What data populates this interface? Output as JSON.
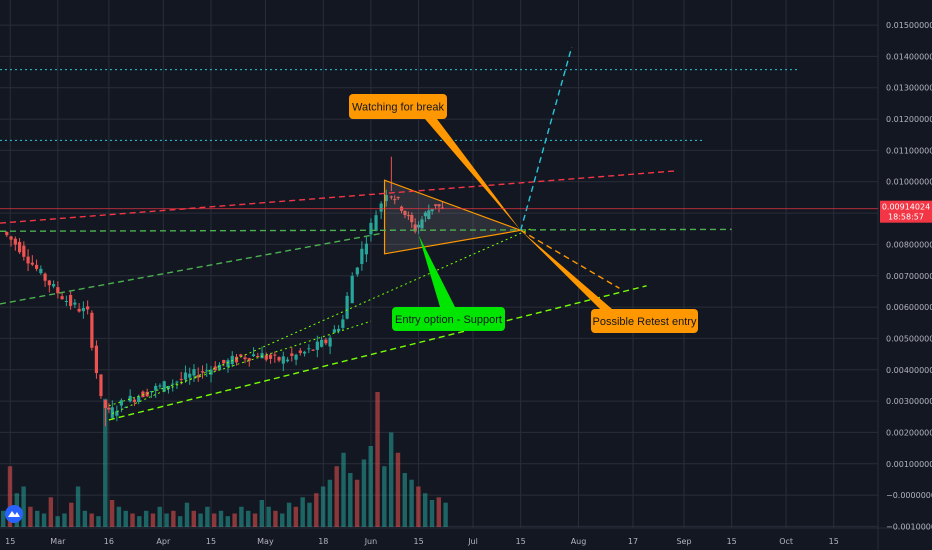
{
  "chart_data": {
    "type": "candlestick",
    "title": "",
    "grid": true,
    "y_axis": {
      "side": "right",
      "ylim": [
        -0.00105,
        0.0158
      ],
      "tick_labels": [
        "0.01500000",
        "0.01400000",
        "0.01300000",
        "0.01200000",
        "0.01100000",
        "0.01000000",
        "0.00900000",
        "0.00800000",
        "0.00700000",
        "0.00600000",
        "0.00500000",
        "0.00400000",
        "0.00300000",
        "0.00200000",
        "0.00100000",
        "−0.00000000",
        "−0.00100000"
      ],
      "tick_values": [
        0.015,
        0.014,
        0.013,
        0.012,
        0.011,
        0.01,
        0.009,
        0.008,
        0.007,
        0.006,
        0.005,
        0.004,
        0.003,
        0.002,
        0.001,
        0.0,
        -0.001
      ]
    },
    "x_axis": {
      "tick_labels": [
        "15",
        "Mar",
        "16",
        "Apr",
        "15",
        "May",
        "18",
        "Jun",
        "15",
        "Jul",
        "15",
        "Aug",
        "17",
        "Sep",
        "15",
        "Oct",
        "15"
      ],
      "tick_days": [
        -14,
        0,
        15,
        31,
        45,
        61,
        78,
        92,
        106,
        122,
        136,
        153,
        169,
        184,
        198,
        214,
        228
      ],
      "xlim": [
        -17,
        241
      ]
    },
    "current_price": {
      "label": "0.00914024",
      "value": 0.00914024,
      "timer": "18:58:57",
      "color": "#f23645"
    },
    "candles_weekly_close": {
      "days": [
        -15,
        -10,
        -5,
        0,
        5,
        10,
        14,
        16,
        20,
        25,
        30,
        35,
        40,
        45,
        50,
        55,
        60,
        65,
        70,
        75,
        80,
        85,
        88,
        92,
        95,
        98,
        100,
        102,
        104,
        106,
        108,
        110,
        112,
        114
      ],
      "close": [
        0.0084,
        0.0079,
        0.0072,
        0.0066,
        0.0061,
        0.0058,
        0.003,
        0.0026,
        0.0029,
        0.0032,
        0.0034,
        0.0036,
        0.0038,
        0.004,
        0.0042,
        0.0044,
        0.0045,
        0.0043,
        0.0044,
        0.0046,
        0.0049,
        0.0056,
        0.007,
        0.0082,
        0.009,
        0.0097,
        0.0095,
        0.0092,
        0.0088,
        0.0085,
        0.0088,
        0.0091,
        0.0093,
        0.0091
      ]
    },
    "volume": {
      "note": "volume histogram in bottom pane (relative heights 0-1)",
      "days": [
        -16,
        -14,
        -12,
        -10,
        -8,
        -6,
        -4,
        -2,
        0,
        2,
        4,
        6,
        8,
        10,
        12,
        14,
        16,
        18,
        20,
        22,
        24,
        26,
        28,
        30,
        32,
        34,
        36,
        38,
        40,
        42,
        44,
        46,
        48,
        50,
        52,
        54,
        56,
        58,
        60,
        62,
        64,
        66,
        68,
        70,
        72,
        74,
        76,
        78,
        80,
        82,
        84,
        86,
        88,
        90,
        92,
        94,
        96,
        98,
        100,
        102,
        104,
        106,
        108,
        110,
        112,
        114
      ],
      "heights": [
        0.12,
        0.45,
        0.25,
        0.3,
        0.15,
        0.12,
        0.1,
        0.22,
        0.08,
        0.1,
        0.18,
        0.3,
        0.12,
        0.1,
        0.08,
        0.95,
        0.2,
        0.15,
        0.12,
        0.1,
        0.08,
        0.12,
        0.1,
        0.15,
        0.1,
        0.12,
        0.08,
        0.18,
        0.12,
        0.1,
        0.15,
        0.1,
        0.12,
        0.08,
        0.1,
        0.15,
        0.12,
        0.1,
        0.2,
        0.15,
        0.12,
        0.1,
        0.18,
        0.15,
        0.22,
        0.18,
        0.25,
        0.3,
        0.35,
        0.45,
        0.55,
        0.4,
        0.35,
        0.5,
        0.6,
        1.0,
        0.45,
        0.7,
        0.55,
        0.4,
        0.35,
        0.3,
        0.25,
        0.2,
        0.22,
        0.18
      ]
    },
    "lines": [
      {
        "name": "cyan-level-upper",
        "style": "dotted",
        "color": "#26c6da",
        "points": [
          [
            -17,
            0.01358
          ],
          [
            218,
            0.01358
          ]
        ]
      },
      {
        "name": "cyan-level-lower",
        "style": "dotted",
        "color": "#26c6da",
        "points": [
          [
            -17,
            0.01132
          ],
          [
            190,
            0.01132
          ]
        ]
      },
      {
        "name": "red-resistance",
        "style": "dashed",
        "color": "#f23645",
        "points": [
          [
            -17,
            0.00868
          ],
          [
            182,
            0.01035
          ]
        ]
      },
      {
        "name": "green-horizontal-support",
        "style": "dashed",
        "color": "#4caf50",
        "points": [
          [
            -17,
            0.00842
          ],
          [
            198,
            0.00848
          ]
        ]
      },
      {
        "name": "green-trend-mid",
        "style": "dashed",
        "color": "#4caf50",
        "points": [
          [
            -17,
            0.0061
          ],
          [
            95,
            0.00835
          ]
        ]
      },
      {
        "name": "green-trend-lower",
        "style": "dashed",
        "color": "#76ff03",
        "points": [
          [
            15,
            0.0024
          ],
          [
            173,
            0.00668
          ]
        ]
      },
      {
        "name": "green-channel-dotted",
        "style": "dotted",
        "color": "#76ff03",
        "points": [
          [
            16,
            0.0026
          ],
          [
            139,
            0.0085
          ]
        ]
      },
      {
        "name": "channel-top-dotted",
        "style": "dotted",
        "color": "#76ff03",
        "points": [
          [
            15,
            0.00285
          ],
          [
            92,
            0.00555
          ]
        ]
      },
      {
        "name": "cyan-breakout-projection",
        "style": "dashed",
        "color": "#26c6da",
        "points": [
          [
            136,
            0.00845
          ],
          [
            151,
            0.0143
          ]
        ]
      },
      {
        "name": "orange-retest-projection",
        "style": "dashed",
        "color": "#ff9800",
        "points": [
          [
            136,
            0.00845
          ],
          [
            165,
            0.0066
          ]
        ]
      }
    ],
    "triangle": {
      "points": [
        [
          96,
          0.01005
        ],
        [
          96,
          0.0077
        ],
        [
          136,
          0.00845
        ]
      ],
      "color": "#ff9800"
    },
    "annotations": [
      {
        "text": "Watching for break",
        "bg": "#ff9800",
        "fg": "#131722"
      },
      {
        "text": "Entry option - Support",
        "bg": "#00e600",
        "fg": "#131722"
      },
      {
        "text": "Possible Retest entry",
        "bg": "#ff9800",
        "fg": "#131722"
      }
    ],
    "colors": {
      "up": "#26a69a",
      "down": "#ef5350",
      "background": "#131722",
      "grid": "#2a2e39"
    }
  }
}
